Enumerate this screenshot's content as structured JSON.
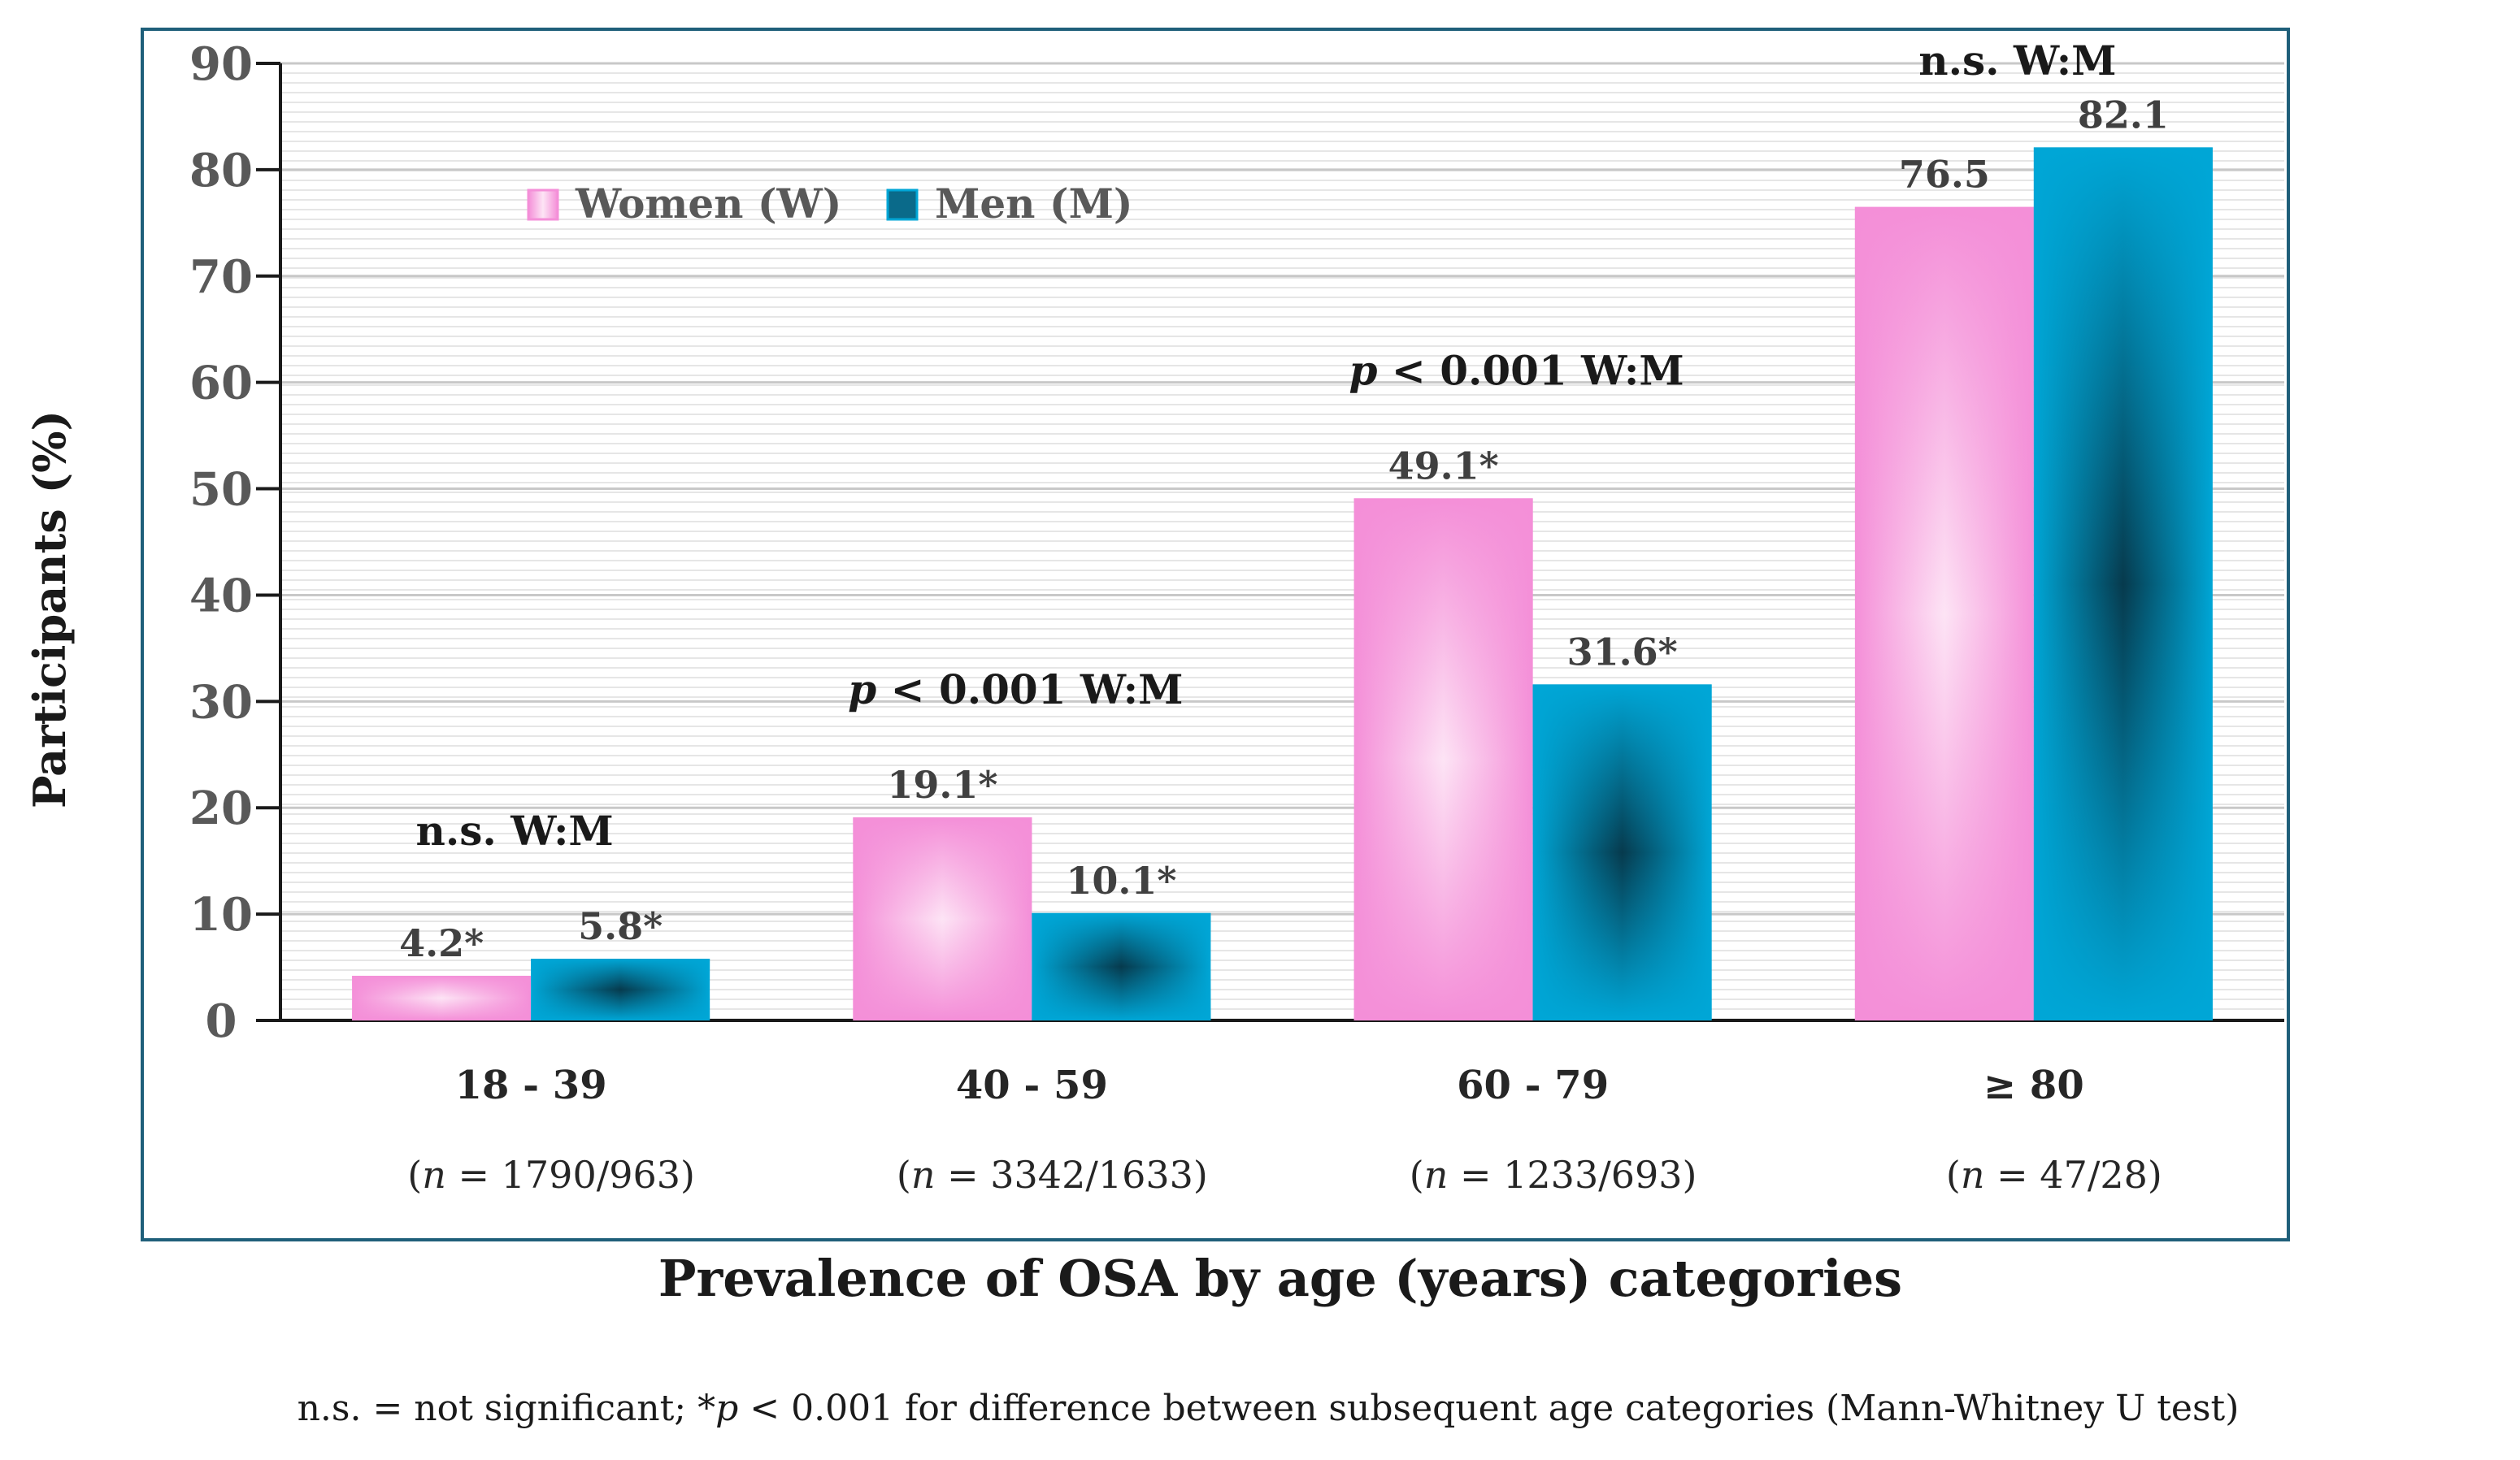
{
  "chart_data": {
    "type": "bar",
    "title": "",
    "xlabel": "Prevalence of OSA by age (years) categories",
    "ylabel": "Participants (%)",
    "ylim": [
      0,
      90
    ],
    "yticks": [
      0,
      10,
      20,
      30,
      40,
      50,
      60,
      70,
      80,
      90
    ],
    "grid": true,
    "legend_position": "top-left",
    "categories": [
      "18 - 39",
      "40 - 59",
      "60 - 79",
      "≥ 80"
    ],
    "category_n": [
      {
        "n_prefix": "(",
        "n_var": "n",
        "n_rest": " = 1790/963)"
      },
      {
        "n_prefix": "(",
        "n_var": "n",
        "n_rest": " = 3342/1633)"
      },
      {
        "n_prefix": "(",
        "n_var": "n",
        "n_rest": " = 1233/693)"
      },
      {
        "n_prefix": "(",
        "n_var": "n",
        "n_rest": " = 47/28)"
      }
    ],
    "series": [
      {
        "name": "Women (W)",
        "color": "#f48fd8",
        "values": [
          4.2,
          19.1,
          49.1,
          76.5
        ],
        "labels": [
          "4.2*",
          "19.1*",
          "49.1*",
          "76.5"
        ]
      },
      {
        "name": "Men (M)",
        "color": "#00a6d6",
        "values": [
          5.8,
          10.1,
          31.6,
          82.1
        ],
        "labels": [
          "5.8*",
          "10.1*",
          "31.6*",
          "82.1"
        ]
      }
    ],
    "annotations": [
      {
        "category": 0,
        "pre": "",
        "italic": "",
        "post": "n.s. W:M"
      },
      {
        "category": 1,
        "pre": "",
        "italic": "p",
        "post": " < 0.001 W:M"
      },
      {
        "category": 2,
        "pre": "",
        "italic": "p",
        "post": " < 0.001 W:M"
      },
      {
        "category": 3,
        "pre": "",
        "italic": "",
        "post": "n.s. W:M"
      }
    ],
    "footnote": {
      "part1": "n.s. = not significant; *",
      "italic": "p",
      "part2": " < 0.001 for difference between subsequent age categories (Mann-Whitney U test)"
    }
  }
}
